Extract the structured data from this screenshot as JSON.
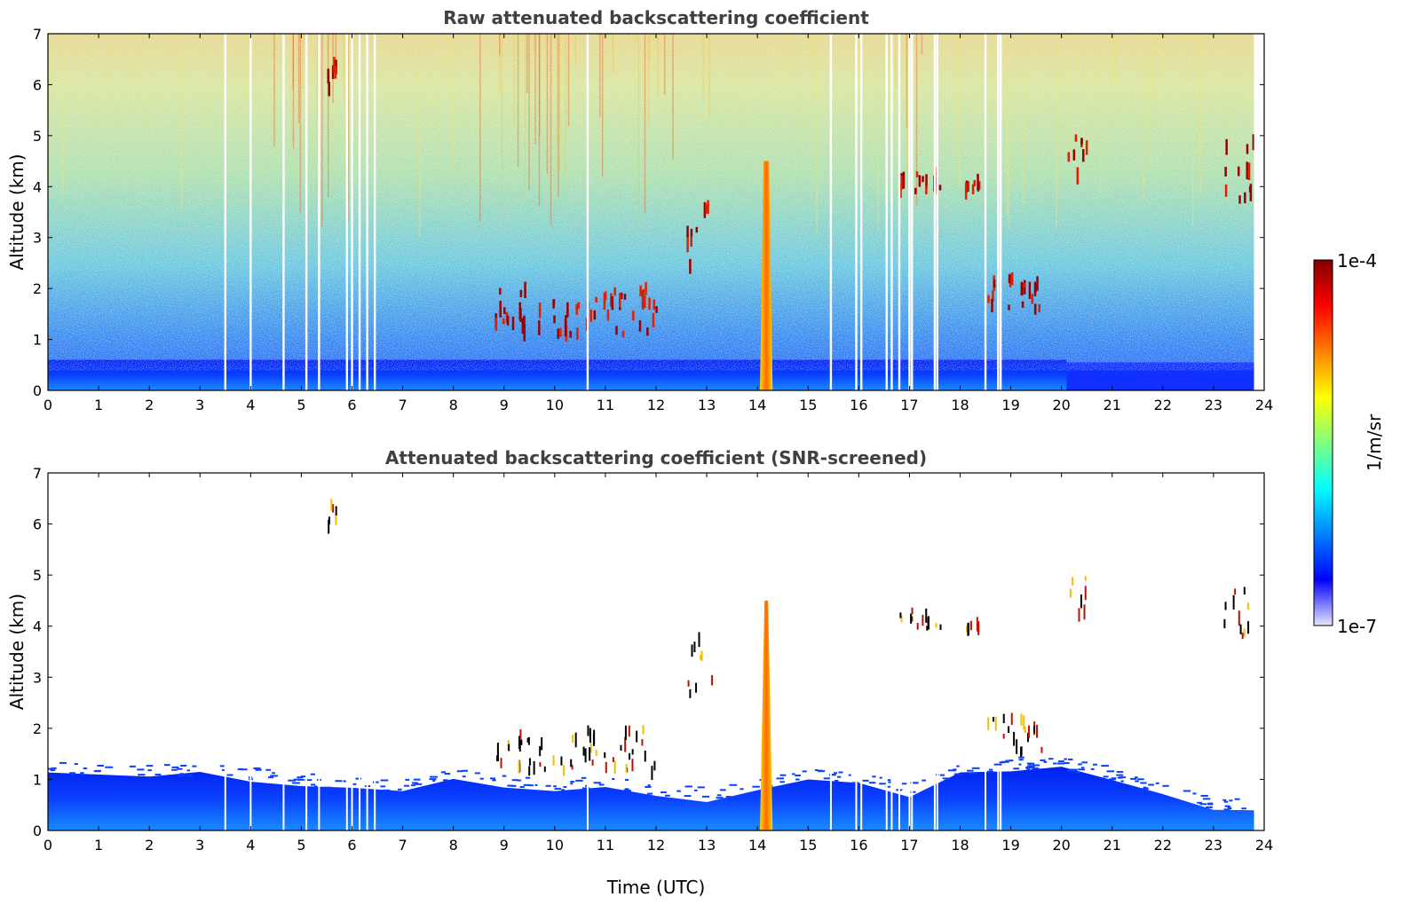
{
  "chart_data": [
    {
      "type": "heatmap",
      "title": "Raw attenuated backscattering coefficient",
      "xlabel": "",
      "ylabel": "Altitude (km)",
      "xlim": [
        0,
        24
      ],
      "ylim": [
        0,
        7
      ],
      "x_ticks": [
        "0",
        "1",
        "2",
        "3",
        "4",
        "5",
        "6",
        "7",
        "8",
        "9",
        "10",
        "11",
        "12",
        "13",
        "14",
        "15",
        "16",
        "17",
        "18",
        "19",
        "20",
        "21",
        "22",
        "23",
        "24"
      ],
      "y_ticks": [
        "0",
        "1",
        "2",
        "3",
        "4",
        "5",
        "6",
        "7"
      ],
      "grid": false,
      "data_end_time": 23.8,
      "gaps_utc": [
        3.5,
        4.0,
        4.65,
        5.1,
        5.35,
        5.9,
        6.0,
        6.15,
        6.3,
        6.45,
        10.65,
        15.45,
        15.95,
        16.05,
        16.55,
        16.65,
        16.8,
        17.0,
        17.05,
        17.5,
        17.55,
        18.5,
        18.75,
        18.8
      ],
      "features": [
        {
          "kind": "boundary_layer",
          "t": [
            0,
            20.1
          ],
          "top_km": 0.6
        },
        {
          "kind": "precipitation_shaft",
          "t": [
            14.05,
            14.3
          ],
          "z": [
            0,
            4.5
          ]
        },
        {
          "kind": "cloud",
          "t": [
            5.45,
            5.7
          ],
          "z": [
            5.9,
            6.4
          ]
        },
        {
          "kind": "cloud",
          "t": [
            8.8,
            12.0
          ],
          "z": [
            1.1,
            2.0
          ]
        },
        {
          "kind": "cloud",
          "t": [
            12.6,
            13.1
          ],
          "z": [
            2.4,
            3.8
          ]
        },
        {
          "kind": "cloud",
          "t": [
            16.8,
            17.6
          ],
          "z": [
            3.9,
            4.3
          ]
        },
        {
          "kind": "cloud",
          "t": [
            18.0,
            18.4
          ],
          "z": [
            3.9,
            4.1
          ]
        },
        {
          "kind": "cloud",
          "t": [
            18.5,
            19.6
          ],
          "z": [
            1.5,
            2.2
          ]
        },
        {
          "kind": "cloud",
          "t": [
            20.1,
            20.5
          ],
          "z": [
            4.2,
            5.0
          ]
        },
        {
          "kind": "cloud",
          "t": [
            23.2,
            23.8
          ],
          "z": [
            3.7,
            4.9
          ]
        }
      ]
    },
    {
      "type": "heatmap",
      "title": "Attenuated backscattering coefficient (SNR-screened)",
      "xlabel": "Time (UTC)",
      "ylabel": "Altitude (km)",
      "xlim": [
        0,
        24
      ],
      "ylim": [
        0,
        7
      ],
      "x_ticks": [
        "0",
        "1",
        "2",
        "3",
        "4",
        "5",
        "6",
        "7",
        "8",
        "9",
        "10",
        "11",
        "12",
        "13",
        "14",
        "15",
        "16",
        "17",
        "18",
        "19",
        "20",
        "21",
        "22",
        "23",
        "24"
      ],
      "y_ticks": [
        "0",
        "1",
        "2",
        "3",
        "4",
        "5",
        "6",
        "7"
      ],
      "grid": false,
      "boundary_layer_top_km": [
        [
          0,
          1.1
        ],
        [
          2,
          1.05
        ],
        [
          3,
          1.1
        ],
        [
          4,
          1.0
        ],
        [
          5,
          0.9
        ],
        [
          6,
          0.8
        ],
        [
          7,
          0.8
        ],
        [
          8,
          1.0
        ],
        [
          9,
          0.85
        ],
        [
          10,
          0.75
        ],
        [
          11,
          0.85
        ],
        [
          12,
          0.7
        ],
        [
          13,
          0.6
        ],
        [
          14,
          0.8
        ],
        [
          15,
          1.0
        ],
        [
          16,
          0.9
        ],
        [
          17,
          0.7
        ],
        [
          18,
          1.1
        ],
        [
          19,
          1.2
        ],
        [
          20,
          1.2
        ],
        [
          21,
          1.0
        ],
        [
          22,
          0.7
        ],
        [
          23,
          0.4
        ],
        [
          23.8,
          0.4
        ]
      ]
    }
  ],
  "colorbar": {
    "label": "1/m/sr",
    "max_label": "1e-4",
    "min_label": "1e-7",
    "colors": [
      "#e6e6ff",
      "#0000ff",
      "#0080ff",
      "#00ffff",
      "#80ff80",
      "#ffff00",
      "#ff8000",
      "#ff0000",
      "#800000"
    ]
  }
}
